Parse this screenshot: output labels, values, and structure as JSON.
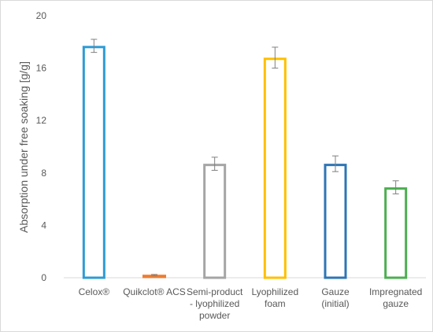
{
  "chart_data": {
    "type": "bar",
    "title": "",
    "xlabel": "",
    "ylabel": "Absorption under free soaking [g/g]",
    "ylim": [
      0,
      20
    ],
    "yticks": [
      "0",
      "4",
      "8",
      "12",
      "16",
      "20"
    ],
    "grid": false,
    "legend": "none",
    "categories": [
      [
        "Celox®"
      ],
      [
        "Quikclot® ACS"
      ],
      [
        "Semi-product",
        "- lyophilized",
        "powder"
      ],
      [
        "Lyophilized",
        "foam"
      ],
      [
        "Gauze",
        "(initial)"
      ],
      [
        "Impregnated",
        "gauze"
      ]
    ],
    "values": [
      17.7,
      0.2,
      8.7,
      16.8,
      8.7,
      6.9
    ],
    "error": [
      0.5,
      0.05,
      0.5,
      0.8,
      0.6,
      0.5
    ],
    "colors": [
      "#2E9BD6",
      "#ED7D31",
      "#A5A5A5",
      "#FFC000",
      "#2E75B6",
      "#4CAF50"
    ],
    "error_bar_color": "#808080"
  }
}
